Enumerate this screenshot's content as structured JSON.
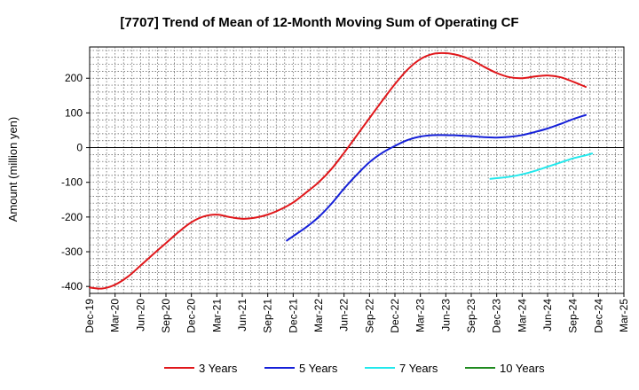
{
  "chart_data": {
    "type": "line",
    "title": "[7707]  Trend of Mean of 12-Month Moving Sum of Operating CF",
    "xlabel": "",
    "ylabel": "Amount (million yen)",
    "ylim": [
      -420,
      290
    ],
    "yticks": [
      -400,
      -300,
      -200,
      -100,
      0,
      100,
      200
    ],
    "x_ticks": [
      "Dec-19",
      "Mar-20",
      "Jun-20",
      "Sep-20",
      "Dec-20",
      "Mar-21",
      "Jun-21",
      "Sep-21",
      "Dec-21",
      "Mar-22",
      "Jun-22",
      "Sep-22",
      "Dec-22",
      "Mar-23",
      "Jun-23",
      "Sep-23",
      "Dec-23",
      "Mar-24",
      "Jun-24",
      "Sep-24",
      "Dec-24",
      "Mar-25"
    ],
    "grid": true,
    "legend_position": "bottom",
    "series": [
      {
        "name": "3 Years",
        "color": "#e0171b",
        "points": [
          [
            0,
            -403
          ],
          [
            0.5,
            -406
          ],
          [
            1,
            -395
          ],
          [
            1.5,
            -372
          ],
          [
            2,
            -340
          ],
          [
            2.5,
            -307
          ],
          [
            3,
            -275
          ],
          [
            3.5,
            -243
          ],
          [
            4,
            -215
          ],
          [
            4.5,
            -198
          ],
          [
            5,
            -193
          ],
          [
            5.5,
            -200
          ],
          [
            6,
            -205
          ],
          [
            6.5,
            -202
          ],
          [
            7,
            -193
          ],
          [
            7.5,
            -178
          ],
          [
            8,
            -158
          ],
          [
            8.5,
            -130
          ],
          [
            9,
            -100
          ],
          [
            9.5,
            -62
          ],
          [
            10,
            -15
          ],
          [
            10.5,
            35
          ],
          [
            11,
            85
          ],
          [
            11.5,
            135
          ],
          [
            12,
            183
          ],
          [
            12.5,
            225
          ],
          [
            13,
            255
          ],
          [
            13.5,
            270
          ],
          [
            14,
            272
          ],
          [
            14.5,
            266
          ],
          [
            15,
            253
          ],
          [
            15.5,
            233
          ],
          [
            16,
            215
          ],
          [
            16.5,
            203
          ],
          [
            17,
            200
          ],
          [
            17.5,
            205
          ],
          [
            18,
            208
          ],
          [
            18.5,
            203
          ],
          [
            19,
            190
          ],
          [
            19.5,
            175
          ]
        ]
      },
      {
        "name": "5 Years",
        "color": "#1520d8",
        "points": [
          [
            7.75,
            -268
          ],
          [
            8,
            -255
          ],
          [
            8.5,
            -230
          ],
          [
            9,
            -200
          ],
          [
            9.5,
            -162
          ],
          [
            10,
            -118
          ],
          [
            10.5,
            -78
          ],
          [
            11,
            -42
          ],
          [
            11.5,
            -15
          ],
          [
            12,
            5
          ],
          [
            12.5,
            22
          ],
          [
            13,
            32
          ],
          [
            13.5,
            36
          ],
          [
            14,
            36
          ],
          [
            14.5,
            35
          ],
          [
            15,
            33
          ],
          [
            15.5,
            30
          ],
          [
            16,
            29
          ],
          [
            16.5,
            31
          ],
          [
            17,
            36
          ],
          [
            17.5,
            45
          ],
          [
            18,
            55
          ],
          [
            18.5,
            68
          ],
          [
            19,
            82
          ],
          [
            19.5,
            94
          ]
        ]
      },
      {
        "name": "7 Years",
        "color": "#22e8ec",
        "points": [
          [
            15.75,
            -90
          ],
          [
            16,
            -88
          ],
          [
            16.5,
            -84
          ],
          [
            17,
            -77
          ],
          [
            17.5,
            -67
          ],
          [
            18,
            -55
          ],
          [
            18.5,
            -43
          ],
          [
            19,
            -31
          ],
          [
            19.5,
            -22
          ],
          [
            19.75,
            -17
          ]
        ]
      },
      {
        "name": "10 Years",
        "color": "#1f8a1f",
        "points": []
      }
    ]
  }
}
